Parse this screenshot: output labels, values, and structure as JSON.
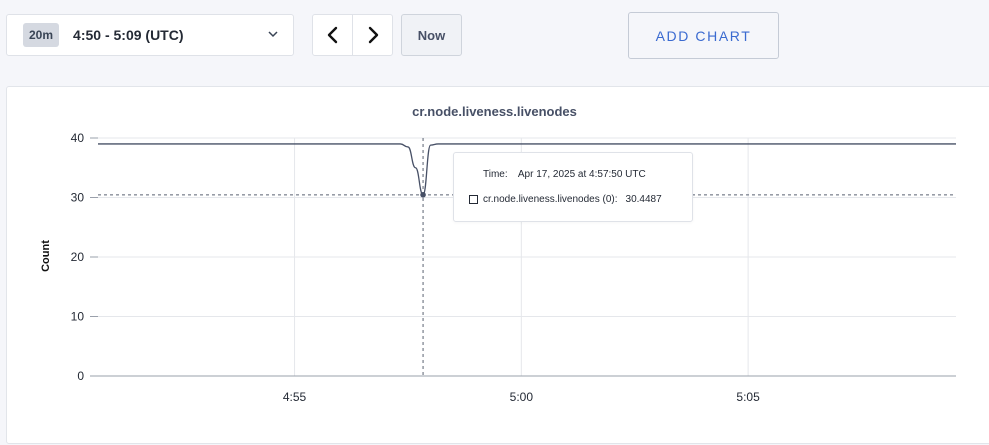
{
  "toolbar": {
    "range_chip": "20m",
    "range_text": "4:50 - 5:09 (UTC)",
    "now_label": "Now",
    "add_chart_label": "ADD CHART"
  },
  "colors": {
    "line": "#475066",
    "grid": "#e5e7eb",
    "accent": "#3a6ad0"
  },
  "chart_data": {
    "type": "line",
    "title": "cr.node.liveness.livenodes",
    "xlabel": "",
    "ylabel": "Count",
    "ylim": [
      0,
      40
    ],
    "yticks": [
      0,
      10,
      20,
      30,
      40
    ],
    "xlim": [
      "4:50:40",
      "5:09:35"
    ],
    "xticks": [
      "4:55",
      "5:00",
      "5:05"
    ],
    "grid": true,
    "series": [
      {
        "x": [
          "4:50:40",
          "4:57:20",
          "4:57:30",
          "4:57:40",
          "4:57:50",
          "4:58:00",
          "4:58:10",
          "5:09:35"
        ],
        "values": [
          39,
          39,
          38.5,
          35,
          30.4487,
          38.8,
          39,
          39
        ]
      }
    ],
    "hover": {
      "time_key": "Time:",
      "time_value": "Apr 17, 2025 at 4:57:50 UTC",
      "series_label": "cr.node.liveness.livenodes (0):",
      "value": "30.4487",
      "x": "4:57:50",
      "y": 30.4487
    }
  }
}
